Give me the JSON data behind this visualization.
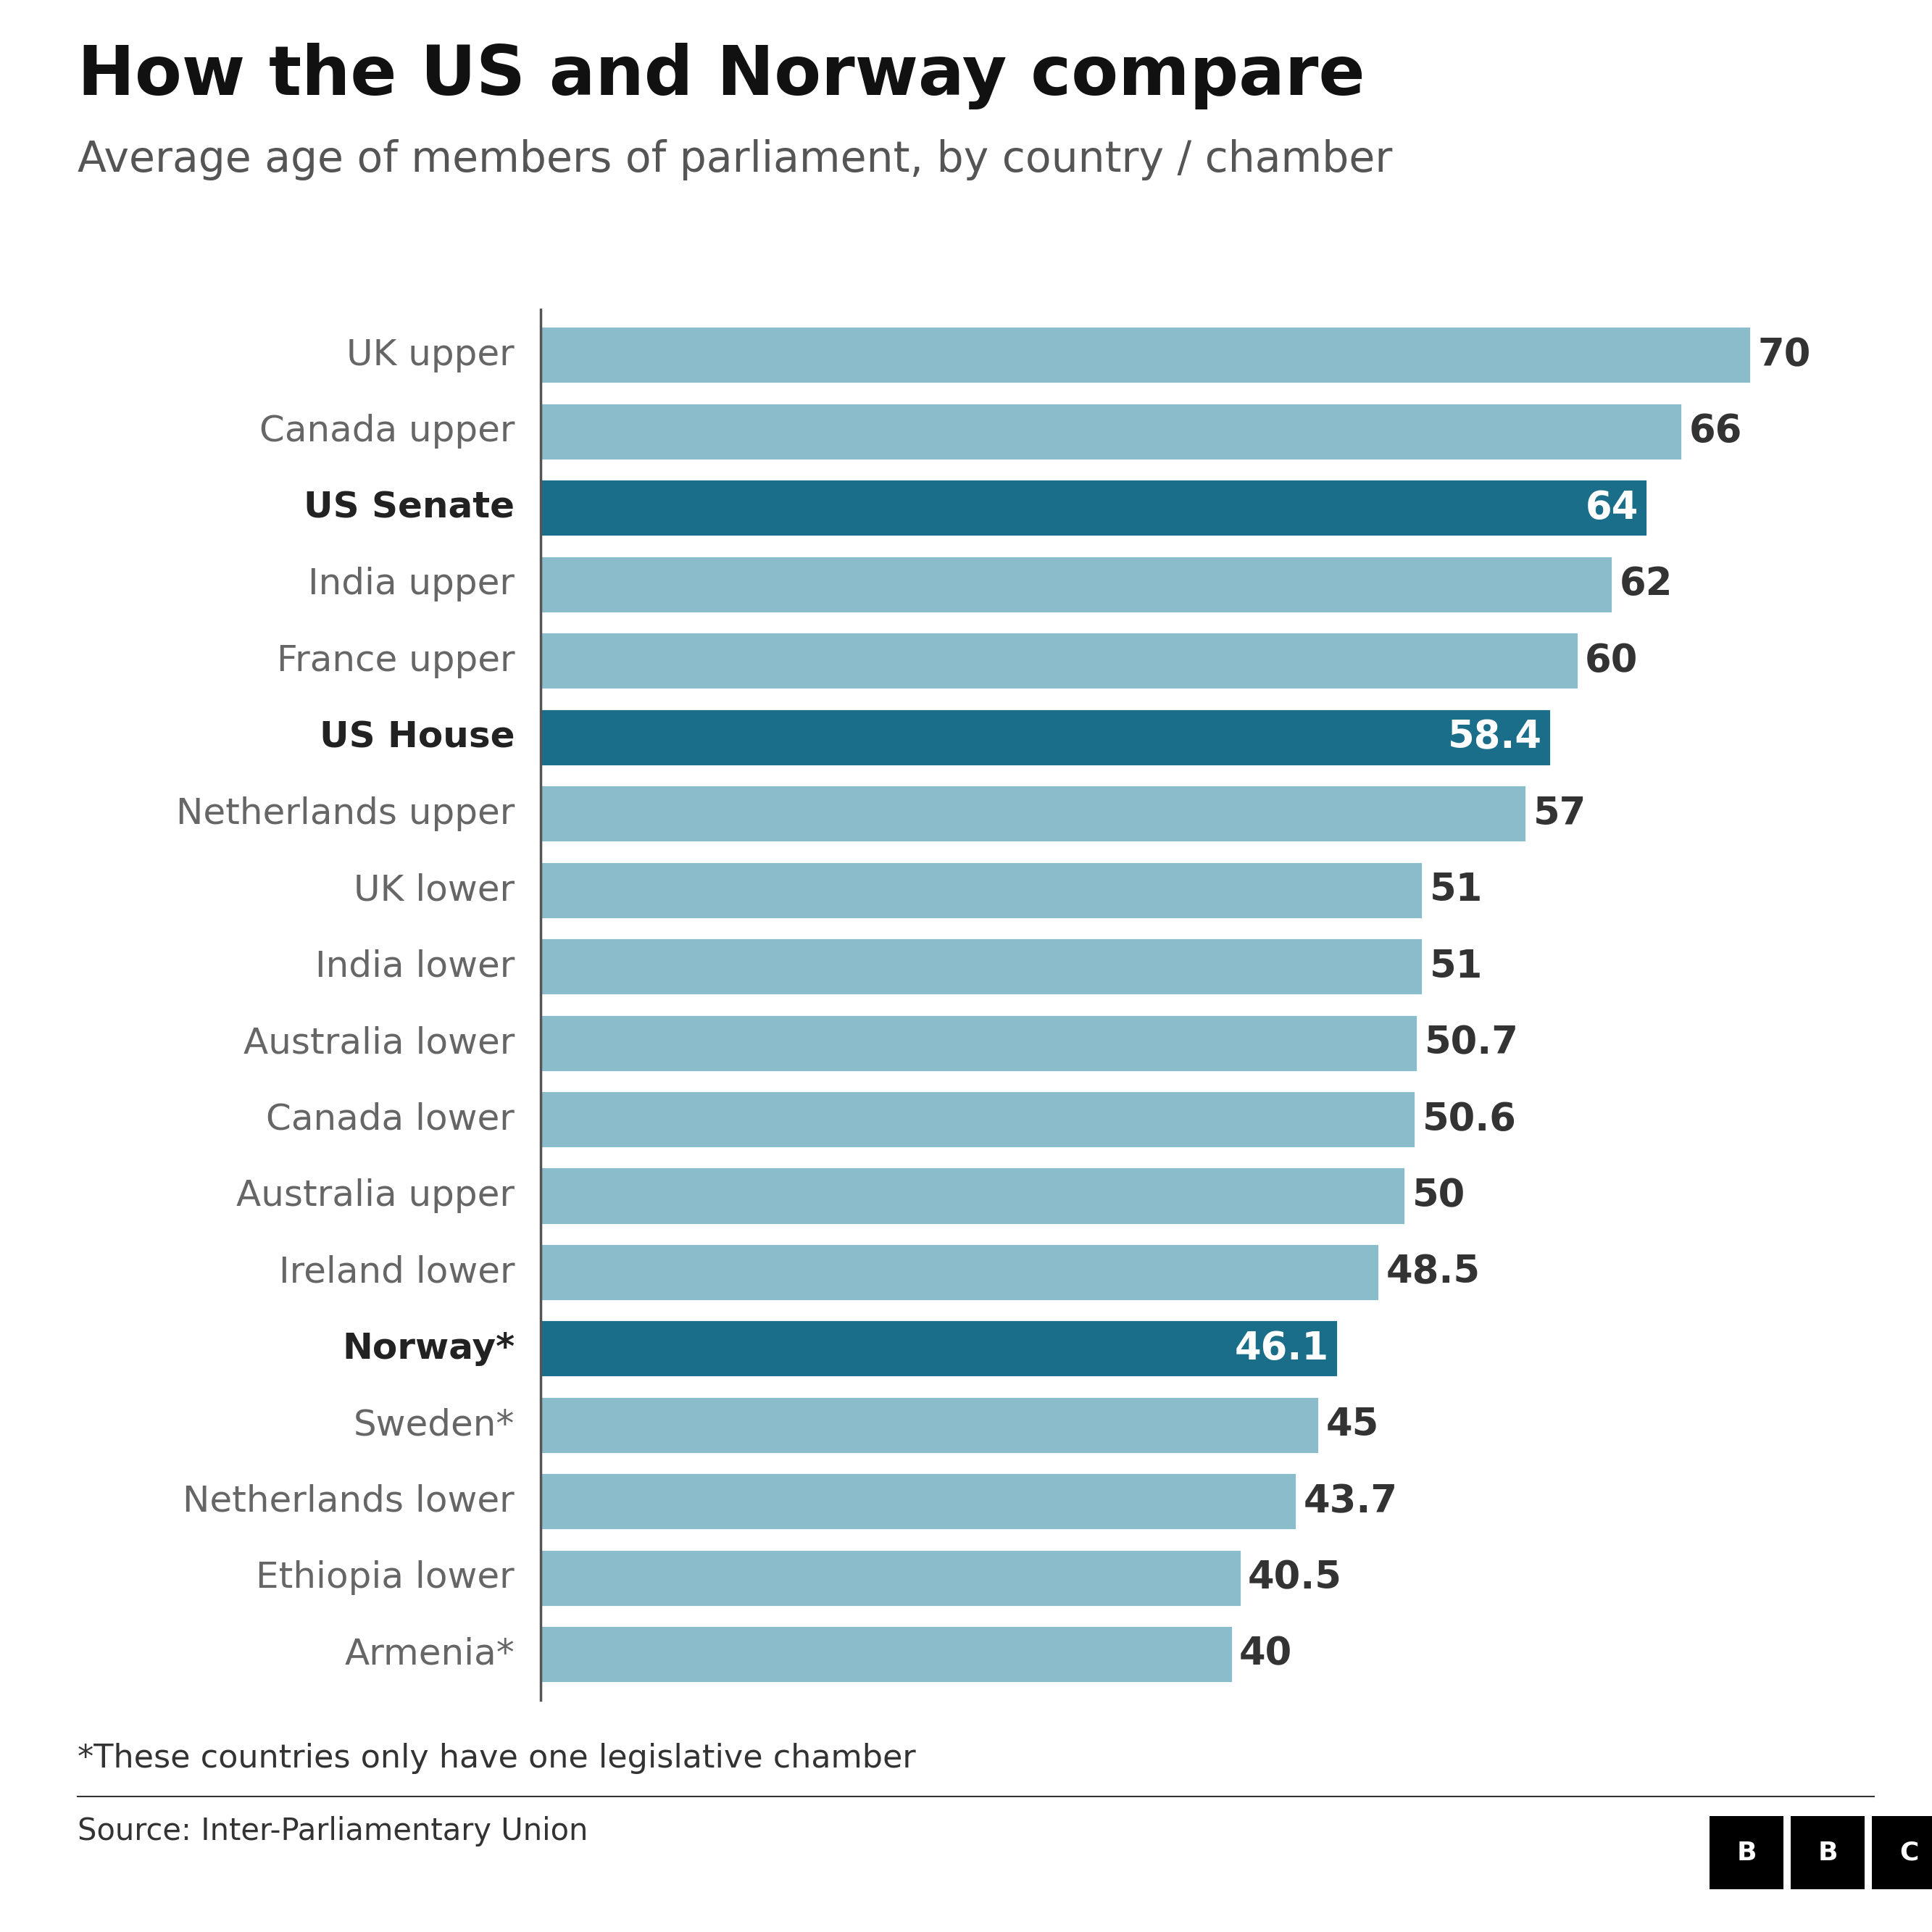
{
  "title": "How the US and Norway compare",
  "subtitle": "Average age of members of parliament, by country / chamber",
  "footnote": "*These countries only have one legislative chamber",
  "source": "Source: Inter-Parliamentary Union",
  "categories": [
    "UK upper",
    "Canada upper",
    "US Senate",
    "India upper",
    "France upper",
    "US House",
    "Netherlands upper",
    "UK lower",
    "India lower",
    "Australia lower",
    "Canada lower",
    "Australia upper",
    "Ireland lower",
    "Norway*",
    "Sweden*",
    "Netherlands lower",
    "Ethiopia lower",
    "Armenia*"
  ],
  "values": [
    70,
    66,
    64,
    62,
    60,
    58.4,
    57,
    51,
    51,
    50.7,
    50.6,
    50,
    48.5,
    46.1,
    45,
    43.7,
    40.5,
    40
  ],
  "highlight": [
    "US Senate",
    "US House",
    "Norway*"
  ],
  "bar_color_normal": "#8bbccc",
  "bar_color_highlight": "#1a6e8a",
  "label_color_normal": "#333333",
  "label_color_highlight": "#ffffff",
  "bold_labels": [
    "US Senate",
    "US House",
    "Norway*"
  ],
  "background_color": "#ffffff",
  "title_fontsize": 68,
  "subtitle_fontsize": 42,
  "label_fontsize": 36,
  "value_fontsize": 38,
  "footnote_fontsize": 32,
  "source_fontsize": 30
}
